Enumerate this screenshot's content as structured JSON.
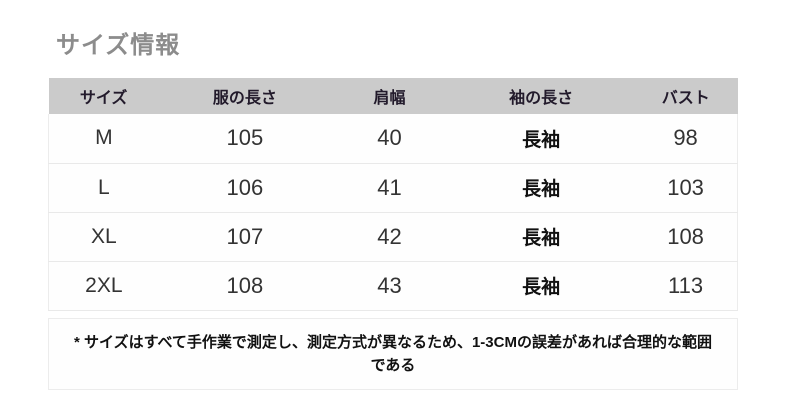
{
  "page": {
    "title": "サイズ情報"
  },
  "table": {
    "headers": [
      "サイズ",
      "服の長さ",
      "肩幅",
      "袖の長さ",
      "バスト"
    ],
    "rows": [
      [
        "M",
        "105",
        "40",
        "長袖",
        "98"
      ],
      [
        "L",
        "106",
        "41",
        "長袖",
        "103"
      ],
      [
        "XL",
        "107",
        "42",
        "長袖",
        "108"
      ],
      [
        "2XL",
        "108",
        "43",
        "長袖",
        "113"
      ]
    ],
    "note": "* サイズはすべて手作業で測定し、測定方式が異なるため、1-3CMの誤差があれば合理的な範囲である"
  },
  "colors": {
    "title_text": "#8c8c8c",
    "header_bg": "#cbcbcb",
    "header_text": "#221a2b",
    "cell_text": "#333333",
    "bold_cell_text": "#111111",
    "row_border": "#e9e9e9",
    "page_bg": "#ffffff"
  }
}
